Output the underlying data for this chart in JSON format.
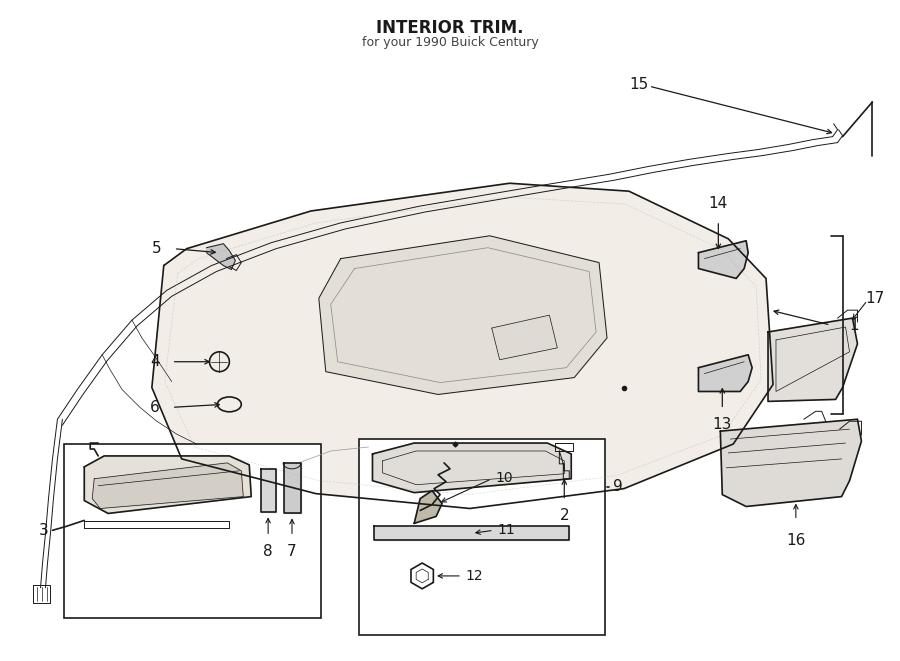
{
  "bg_color": "#ffffff",
  "line_color": "#1a1a1a",
  "lw_main": 1.2,
  "lw_thin": 0.7,
  "lw_hair": 0.5,
  "figw": 9.0,
  "figh": 6.61,
  "dpi": 100,
  "title": "INTERIOR TRIM.",
  "subtitle": "for your 1990 Buick Century",
  "title_fontsize": 12,
  "subtitle_fontsize": 9,
  "label_fontsize": 11
}
